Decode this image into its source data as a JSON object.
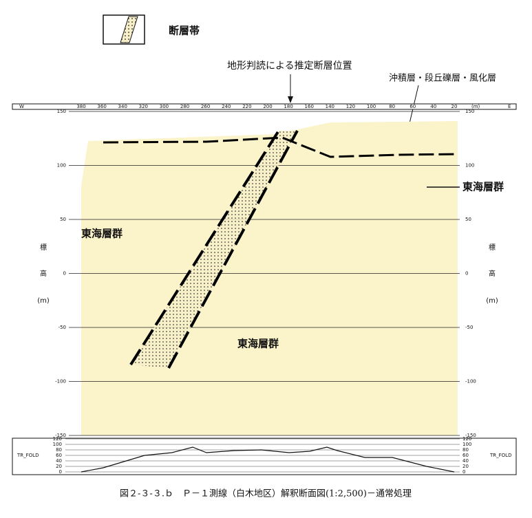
{
  "legend": {
    "label": "断層帯"
  },
  "annotations": {
    "fault_position": "地形判読による推定断層位置",
    "surface_layers": "沖積層・段丘礫層・風化層",
    "group_left": "東海層群",
    "group_center": "東海層群",
    "group_right": "東海層群"
  },
  "top_scale": {
    "left": "W",
    "right": "E",
    "unit": "(m)",
    "ticks": [
      380,
      360,
      340,
      320,
      300,
      280,
      260,
      240,
      220,
      200,
      180,
      160,
      140,
      120,
      100,
      80,
      60,
      40,
      20
    ]
  },
  "elevation": {
    "ticks": [
      150,
      100,
      50,
      0,
      -50,
      -100,
      -150
    ],
    "label": [
      "標",
      "高",
      "(m)"
    ]
  },
  "fold": {
    "label": "TR_FOLD",
    "ticks": [
      120,
      100,
      80,
      60,
      40,
      20,
      0
    ]
  },
  "caption": "図２-３-３.ｂ　Ｐ－１測線（白木地区）解釈断面図(1:2,500)－通常処理"
}
